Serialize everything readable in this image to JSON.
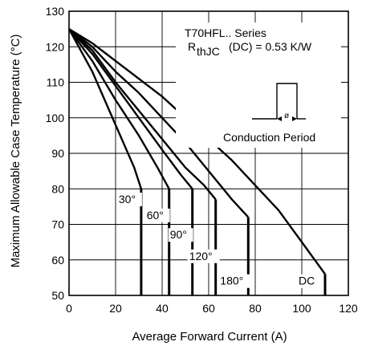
{
  "chart_data": {
    "type": "line",
    "title": "",
    "series_note": "T70HFL.. Series",
    "rth": {
      "prefix": "R",
      "subscript": "thJC",
      "suffix": "(DC) = 0.53 K/W"
    },
    "inset_label": "Conduction Period",
    "inset_symbol": "ø",
    "xlabel": "Average Forward Current (A)",
    "ylabel": "Maximum Allowable Case Temperature (°C)",
    "xlim": [
      0,
      120
    ],
    "ylim": [
      50,
      130
    ],
    "xticks": [
      0,
      20,
      40,
      60,
      80,
      100,
      120
    ],
    "yticks": [
      50,
      60,
      70,
      80,
      90,
      100,
      110,
      120,
      130
    ],
    "grid": true,
    "series": [
      {
        "name": "30°",
        "x": [
          0,
          10,
          20,
          28,
          31
        ],
        "y": [
          125,
          113,
          98,
          86,
          80
        ],
        "drop_x": 31
      },
      {
        "name": "60°",
        "x": [
          0,
          10,
          20,
          30,
          38,
          43
        ],
        "y": [
          125,
          116,
          105,
          95,
          86,
          80
        ],
        "drop_x": 43
      },
      {
        "name": "90°",
        "x": [
          0,
          10,
          20,
          30,
          40,
          48,
          53
        ],
        "y": [
          125,
          118,
          109,
          100,
          91,
          84,
          80
        ],
        "drop_x": 53
      },
      {
        "name": "120°",
        "x": [
          0,
          10,
          20,
          30,
          40,
          50,
          58,
          63
        ],
        "y": [
          125,
          119,
          110,
          102,
          94,
          86,
          81,
          77
        ],
        "drop_x": 63
      },
      {
        "name": "180°",
        "x": [
          0,
          10,
          20,
          30,
          40,
          50,
          60,
          70,
          77
        ],
        "y": [
          125,
          120,
          113,
          107,
          100,
          93,
          85,
          77,
          72
        ],
        "drop_x": 77
      },
      {
        "name": "DC",
        "x": [
          0,
          10,
          20,
          30,
          40,
          50,
          60,
          70,
          80,
          90,
          100,
          110
        ],
        "y": [
          125,
          121,
          116,
          111,
          106,
          100,
          94,
          88,
          81,
          74,
          65,
          56
        ],
        "drop_x": 110
      }
    ]
  }
}
